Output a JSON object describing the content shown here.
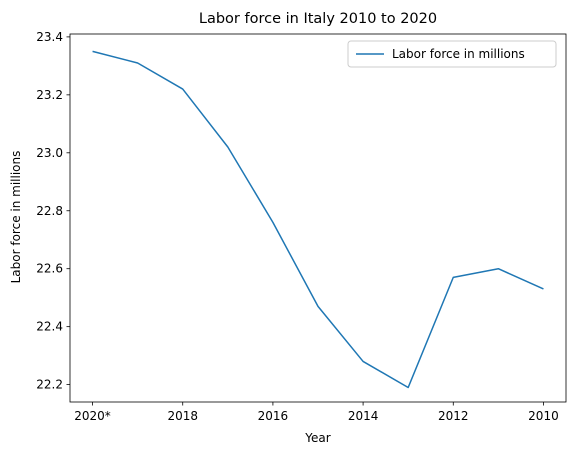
{
  "chart_data": {
    "type": "line",
    "title": "Labor force in Italy 2010 to 2020",
    "xlabel": "Year",
    "ylabel": "Labor force in millions",
    "x_ticks": [
      "2020*",
      "2018",
      "2016",
      "2014",
      "2012",
      "2010"
    ],
    "y_ticks": [
      "22.2",
      "22.4",
      "22.6",
      "22.8",
      "23.0",
      "23.2",
      "23.4"
    ],
    "ylim": [
      22.14,
      23.41
    ],
    "x_reversed": true,
    "grid": false,
    "legend_position": "top-right",
    "series": [
      {
        "name": "Labor force in millions",
        "color": "#1f77b4",
        "points": [
          {
            "x": 2020,
            "y": 23.35
          },
          {
            "x": 2019,
            "y": 23.31
          },
          {
            "x": 2018,
            "y": 23.22
          },
          {
            "x": 2017,
            "y": 23.02
          },
          {
            "x": 2016,
            "y": 22.76
          },
          {
            "x": 2015,
            "y": 22.47
          },
          {
            "x": 2014,
            "y": 22.28
          },
          {
            "x": 2013,
            "y": 22.19
          },
          {
            "x": 2012,
            "y": 22.57
          },
          {
            "x": 2011,
            "y": 22.6
          },
          {
            "x": 2010,
            "y": 22.53
          }
        ]
      }
    ]
  }
}
